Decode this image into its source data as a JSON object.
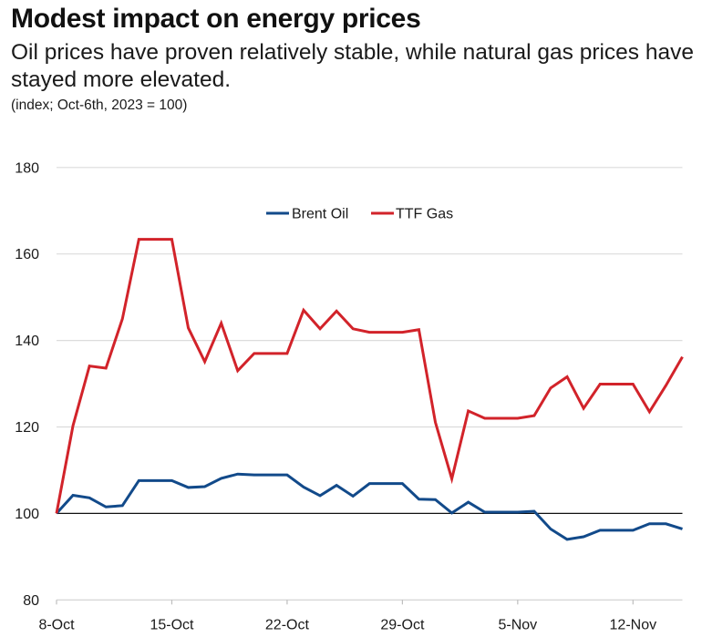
{
  "header": {
    "title": "Modest impact on energy prices",
    "subtitle": "Oil prices have proven relatively stable, while natural gas prices have stayed more elevated.",
    "note": "(index; Oct-6th, 2023 = 100)"
  },
  "chart_data": {
    "type": "line",
    "title": "Modest impact on energy prices",
    "subtitle": "Oil prices have proven relatively stable, while natural gas prices have stayed more elevated.",
    "xlabel": "",
    "ylabel": "(index; Oct-6th, 2023 = 100)",
    "ylim": [
      80,
      180
    ],
    "yticks": [
      80,
      100,
      120,
      140,
      160,
      180
    ],
    "ytick_labels": [
      "80",
      "100",
      "120",
      "140",
      "160",
      "180"
    ],
    "xticks": [
      "8-Oct",
      "15-Oct",
      "22-Oct",
      "29-Oct",
      "5-Nov",
      "12-Nov"
    ],
    "xtick_day_index": [
      0,
      7,
      14,
      21,
      28,
      35
    ],
    "x": [
      "8-Oct",
      "9-Oct",
      "10-Oct",
      "11-Oct",
      "12-Oct",
      "13-Oct",
      "14-Oct",
      "15-Oct",
      "16-Oct",
      "17-Oct",
      "18-Oct",
      "19-Oct",
      "20-Oct",
      "21-Oct",
      "22-Oct",
      "23-Oct",
      "24-Oct",
      "25-Oct",
      "26-Oct",
      "27-Oct",
      "28-Oct",
      "29-Oct",
      "30-Oct",
      "31-Oct",
      "1-Nov",
      "2-Nov",
      "3-Nov",
      "4-Nov",
      "5-Nov",
      "6-Nov",
      "7-Nov",
      "8-Nov",
      "9-Nov",
      "10-Nov",
      "11-Nov",
      "12-Nov",
      "13-Nov",
      "14-Nov",
      "15-Nov"
    ],
    "grid": true,
    "reference_line": 100,
    "legend_position": "top-center",
    "series": [
      {
        "name": "Brent Oil",
        "color": "#124a8a",
        "values": [
          100,
          104.2,
          103.6,
          101.5,
          101.8,
          107.6,
          107.6,
          107.6,
          106.0,
          106.2,
          108.1,
          109.1,
          108.9,
          108.9,
          108.9,
          106.1,
          104.1,
          106.5,
          104.0,
          106.9,
          106.9,
          106.9,
          103.3,
          103.2,
          100.1,
          102.6,
          100.3,
          100.3,
          100.3,
          100.5,
          96.4,
          94.0,
          94.6,
          96.1,
          96.1,
          96.1,
          97.6,
          97.6,
          96.4
        ]
      },
      {
        "name": "TTF Gas",
        "color": "#d2232a",
        "values": [
          100,
          120.3,
          134.1,
          133.6,
          145.0,
          163.4,
          163.4,
          163.4,
          142.9,
          135.1,
          144.0,
          133.0,
          137.0,
          137.0,
          137.0,
          147.0,
          142.7,
          146.8,
          142.7,
          141.9,
          141.9,
          141.9,
          142.5,
          121.1,
          108.0,
          123.7,
          122.0,
          122.0,
          122.0,
          122.6,
          129.0,
          131.6,
          124.3,
          129.9,
          129.9,
          129.9,
          123.5,
          129.6,
          136.2
        ]
      }
    ]
  }
}
